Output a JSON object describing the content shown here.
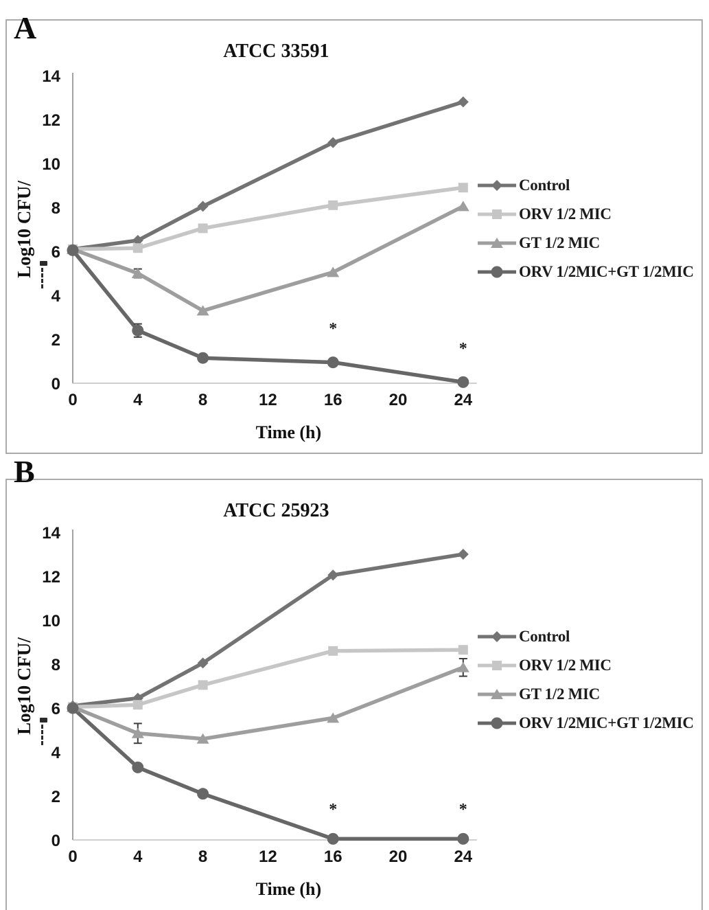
{
  "panel_labels": [
    "A",
    "B"
  ],
  "chart_data": [
    {
      "type": "line",
      "panel": "A",
      "title": "ATCC 33591",
      "xlabel": "Time (h)",
      "ylabel": "Log10 CFU/",
      "x": [
        0,
        4,
        8,
        16,
        24
      ],
      "xticks": [
        0,
        4,
        8,
        12,
        16,
        20,
        24
      ],
      "yticks": [
        0,
        2,
        4,
        6,
        8,
        10,
        12,
        14
      ],
      "xlim": [
        0,
        24
      ],
      "ylim": [
        0,
        14
      ],
      "grid": false,
      "legend_position": "right",
      "series": [
        {
          "name": "Control",
          "marker": "diamond",
          "color": "#737373",
          "values": [
            6.1,
            6.5,
            8.05,
            10.95,
            12.8
          ]
        },
        {
          "name": "ORV 1/2 MIC",
          "marker": "square",
          "color": "#c6c6c6",
          "values": [
            6.1,
            6.15,
            7.05,
            8.1,
            8.9
          ]
        },
        {
          "name": "GT 1/2 MIC",
          "marker": "triangle",
          "color": "#9e9e9e",
          "values": [
            6.1,
            5.0,
            3.3,
            5.05,
            8.05
          ],
          "error_bars": [
            {
              "x": 4,
              "err": 0.2
            }
          ]
        },
        {
          "name": "ORV 1/2MIC+GT 1/2MIC",
          "marker": "circle",
          "color": "#676767",
          "values": [
            6.05,
            2.4,
            1.15,
            0.95,
            0.05
          ],
          "error_bars": [
            {
              "x": 4,
              "err": 0.3
            }
          ]
        }
      ],
      "annotations": [
        {
          "x": 16,
          "y": 2.25,
          "text": "*"
        },
        {
          "x": 24,
          "y": 1.35,
          "text": "*"
        }
      ]
    },
    {
      "type": "line",
      "panel": "B",
      "title": "ATCC 25923",
      "xlabel": "Time (h)",
      "ylabel": "Log10 CFU/",
      "x": [
        0,
        4,
        8,
        16,
        24
      ],
      "xticks": [
        0,
        4,
        8,
        12,
        16,
        20,
        24
      ],
      "yticks": [
        0,
        2,
        4,
        6,
        8,
        10,
        12,
        14
      ],
      "xlim": [
        0,
        24
      ],
      "ylim": [
        0,
        14
      ],
      "grid": false,
      "legend_position": "right",
      "series": [
        {
          "name": "Control",
          "marker": "diamond",
          "color": "#737373",
          "values": [
            6.1,
            6.45,
            8.05,
            12.05,
            13.0
          ]
        },
        {
          "name": "ORV 1/2 MIC",
          "marker": "square",
          "color": "#c6c6c6",
          "values": [
            6.05,
            6.15,
            7.05,
            8.6,
            8.65
          ]
        },
        {
          "name": "GT 1/2 MIC",
          "marker": "triangle",
          "color": "#9e9e9e",
          "values": [
            6.05,
            4.85,
            4.6,
            5.55,
            7.85
          ],
          "error_bars": [
            {
              "x": 4,
              "err": 0.45
            },
            {
              "x": 24,
              "err": 0.4
            }
          ]
        },
        {
          "name": "ORV 1/2MIC+GT 1/2MIC",
          "marker": "circle",
          "color": "#676767",
          "values": [
            6.0,
            3.3,
            2.1,
            0.05,
            0.05
          ]
        }
      ],
      "annotations": [
        {
          "x": 16,
          "y": 1.15,
          "text": "*"
        },
        {
          "x": 24,
          "y": 1.15,
          "text": "*"
        }
      ]
    }
  ]
}
